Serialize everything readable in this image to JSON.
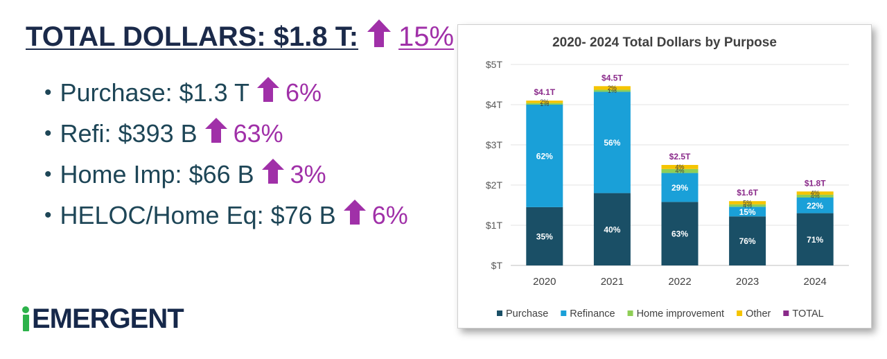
{
  "headline": {
    "main": "TOTAL DOLLARS: $1.8 T:",
    "pct": "15%"
  },
  "bullets": [
    {
      "label": "Purchase: $1.3 T",
      "pct": "6%"
    },
    {
      "label": "Refi: $393 B",
      "pct": "63%"
    },
    {
      "label": "Home Imp: $66 B",
      "pct": "3%"
    },
    {
      "label": "HELOC/Home Eq: $76 B",
      "pct": "6%"
    }
  ],
  "logo": {
    "text": "EMERGENT"
  },
  "colors": {
    "navy": "#1b2a4a",
    "teal_text": "#1e4657",
    "magenta": "#a030a8",
    "purchase": "#1a4f66",
    "refinance": "#1aa0d8",
    "home_improvement": "#8fce56",
    "other": "#f5c400",
    "total": "#8a2a8a",
    "brand_green": "#2cb24a"
  },
  "chart_data": {
    "type": "bar",
    "stacked": true,
    "title": "2020- 2024 Total Dollars by Purpose",
    "categories": [
      "2020",
      "2021",
      "2022",
      "2023",
      "2024"
    ],
    "ylim": [
      0,
      5
    ],
    "yunit": "trillions of dollars",
    "yticks": [
      "$T",
      "$1T",
      "$2T",
      "$3T",
      "$4T",
      "$5T"
    ],
    "grid": true,
    "legend_position": "bottom",
    "series": [
      {
        "name": "Purchase",
        "key": "purchase",
        "values": [
          1.45,
          1.8,
          1.58,
          1.22,
          1.3
        ],
        "labels": [
          "35%",
          "40%",
          "63%",
          "76%",
          "71%"
        ]
      },
      {
        "name": "Refinance",
        "key": "refinance",
        "values": [
          2.55,
          2.52,
          0.72,
          0.24,
          0.39
        ],
        "labels": [
          "62%",
          "56%",
          "29%",
          "15%",
          "22%"
        ]
      },
      {
        "name": "Home improvement",
        "key": "home_improvement",
        "values": [
          0.04,
          0.05,
          0.1,
          0.06,
          0.07
        ],
        "labels": [
          "1%",
          "1%",
          "4%",
          "4%",
          "4%"
        ]
      },
      {
        "name": "Other",
        "key": "other",
        "values": [
          0.06,
          0.09,
          0.1,
          0.08,
          0.08
        ],
        "labels": [
          "2%",
          "2%",
          "4%",
          "5%",
          "4%"
        ]
      }
    ],
    "totals": {
      "name": "TOTAL",
      "key": "total",
      "labels": [
        "$4.1T",
        "$4.5T",
        "$2.5T",
        "$1.6T",
        "$1.8T"
      ]
    }
  }
}
